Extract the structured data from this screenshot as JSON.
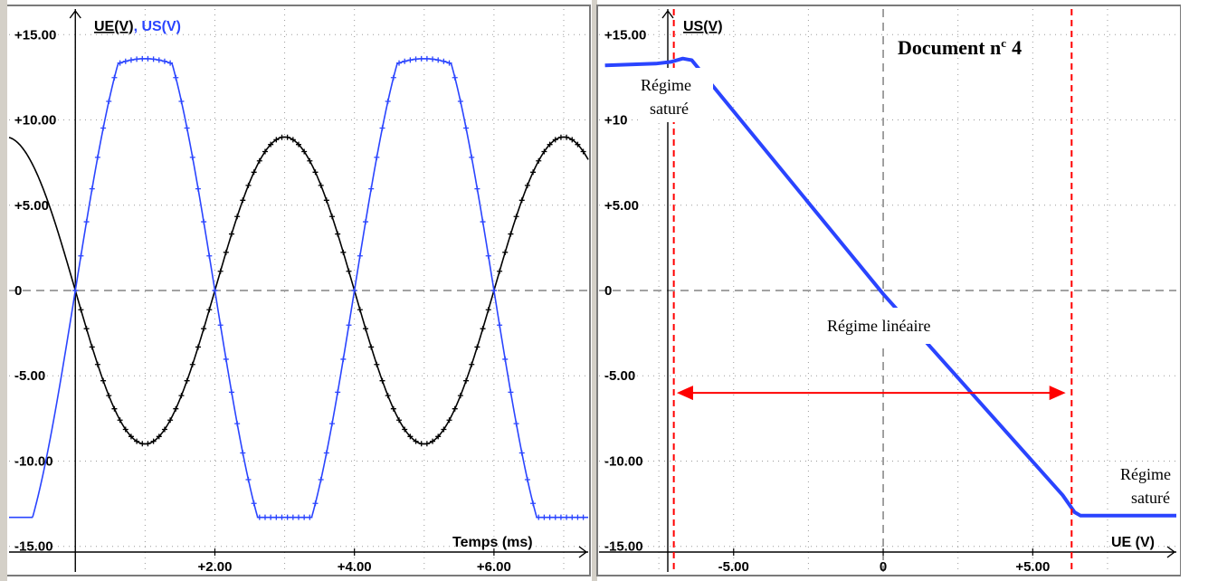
{
  "chart_data": [
    {
      "type": "line",
      "panel": "left",
      "xlabel": "Temps (ms)",
      "ylabel_parts": [
        "UE(V)",
        ", ",
        "US(V)"
      ],
      "xlim": [
        -0.95,
        7.35
      ],
      "ylim": [
        -16.5,
        16.5
      ],
      "x_ticks": [
        2,
        4,
        6
      ],
      "x_tick_labels": [
        "+2.00",
        "+4.00",
        "+6.00"
      ],
      "y_ticks": [
        15,
        10,
        5,
        0,
        -5,
        -10,
        -15
      ],
      "y_tick_labels": [
        "+15.00",
        "+10.00",
        "+5.00",
        "0",
        "-5.00",
        "-10.00",
        "-15.00"
      ],
      "grid": true,
      "series": [
        {
          "name": "UE(V)",
          "color": "#000000",
          "amplitude": 9.0,
          "period_ms": 4.0,
          "phase_deg": 180,
          "marker": "plus"
        },
        {
          "name": "US(V)",
          "color": "#2a44ff",
          "gain": -1.8,
          "saturation": 13.3,
          "overshoot": 13.6,
          "marker": "plus"
        }
      ]
    },
    {
      "type": "line",
      "panel": "right",
      "xlabel": "UE (V)",
      "ylabel": "US(V)",
      "xlim": [
        -9.5,
        9.8
      ],
      "ylim": [
        -16.5,
        16.5
      ],
      "x_ticks": [
        -5,
        0,
        5
      ],
      "x_tick_labels": [
        "-5.00",
        "0",
        "+5.00"
      ],
      "y_ticks": [
        15,
        10,
        5,
        0,
        -5,
        -10,
        -15
      ],
      "y_tick_labels": [
        "+15.00",
        "+10",
        "+5.00",
        "0",
        "-5.00",
        "-10.00",
        "-15.00"
      ],
      "grid": true,
      "series": [
        {
          "name": "US(V)",
          "color": "#2a44ff",
          "points": [
            [
              -9.3,
              13.2
            ],
            [
              -7.6,
              13.3
            ],
            [
              -7.1,
              13.4
            ],
            [
              -6.7,
              13.6
            ],
            [
              -6.4,
              13.5
            ],
            [
              0,
              -0.2
            ],
            [
              6.0,
              -12.0
            ],
            [
              6.4,
              -13.0
            ],
            [
              6.6,
              -13.2
            ],
            [
              9.8,
              -13.2
            ]
          ]
        }
      ],
      "vlines": [
        -7.0,
        6.3
      ],
      "annotations": {
        "doc": "Document n",
        "doc_sup": "c",
        "doc_num": "4",
        "sat_left_1": "Régime",
        "sat_left_2": "saturé",
        "sat_right_1": "Régime",
        "sat_right_2": "saturé",
        "linear": "Régime linéaire"
      },
      "arrow_range": [
        -6.9,
        6.1
      ],
      "arrow_y": -6.0,
      "colors": {
        "vline": "#ff0000",
        "arrow": "#ff0000",
        "trace": "#2a44ff"
      }
    }
  ]
}
